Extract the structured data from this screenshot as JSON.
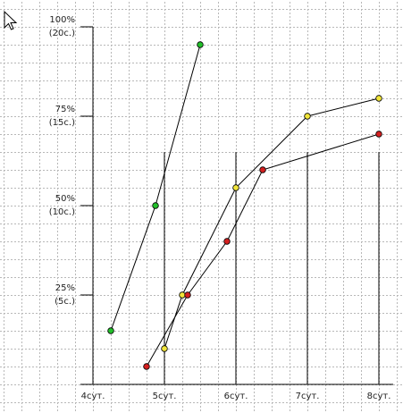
{
  "chart_data": {
    "type": "line",
    "xlim": [
      2.7,
      8.325
    ],
    "ylim": [
      -7.5,
      107.5
    ],
    "xticks": [
      {
        "value": 4,
        "label": "4сут."
      },
      {
        "value": 5,
        "label": "5сут."
      },
      {
        "value": 6,
        "label": "6сут."
      },
      {
        "value": 7,
        "label": "7сут."
      },
      {
        "value": 8,
        "label": "8сут."
      }
    ],
    "yticks": [
      {
        "value": 25,
        "label": [
          "25%",
          "(5с.)"
        ]
      },
      {
        "value": 50,
        "label": [
          "50%",
          "(10с.)"
        ]
      },
      {
        "value": 75,
        "label": [
          "75%",
          "(15с.)"
        ]
      },
      {
        "value": 100,
        "label": [
          "100%",
          "(20с.)"
        ]
      }
    ],
    "reference_level": 65,
    "grid": true,
    "series": [
      {
        "color": "#22c02a",
        "x": [
          4.25,
          4.875,
          5.5
        ],
        "values": [
          15,
          50,
          95
        ]
      },
      {
        "color": "#f2e63a",
        "x": [
          5,
          5.25,
          6,
          7,
          8
        ],
        "values": [
          10,
          25,
          55,
          75,
          80
        ]
      },
      {
        "color": "#d42020",
        "x": [
          4.75,
          5.325,
          5.875,
          6.375,
          8
        ],
        "values": [
          5,
          25,
          40,
          60,
          70
        ]
      }
    ]
  }
}
